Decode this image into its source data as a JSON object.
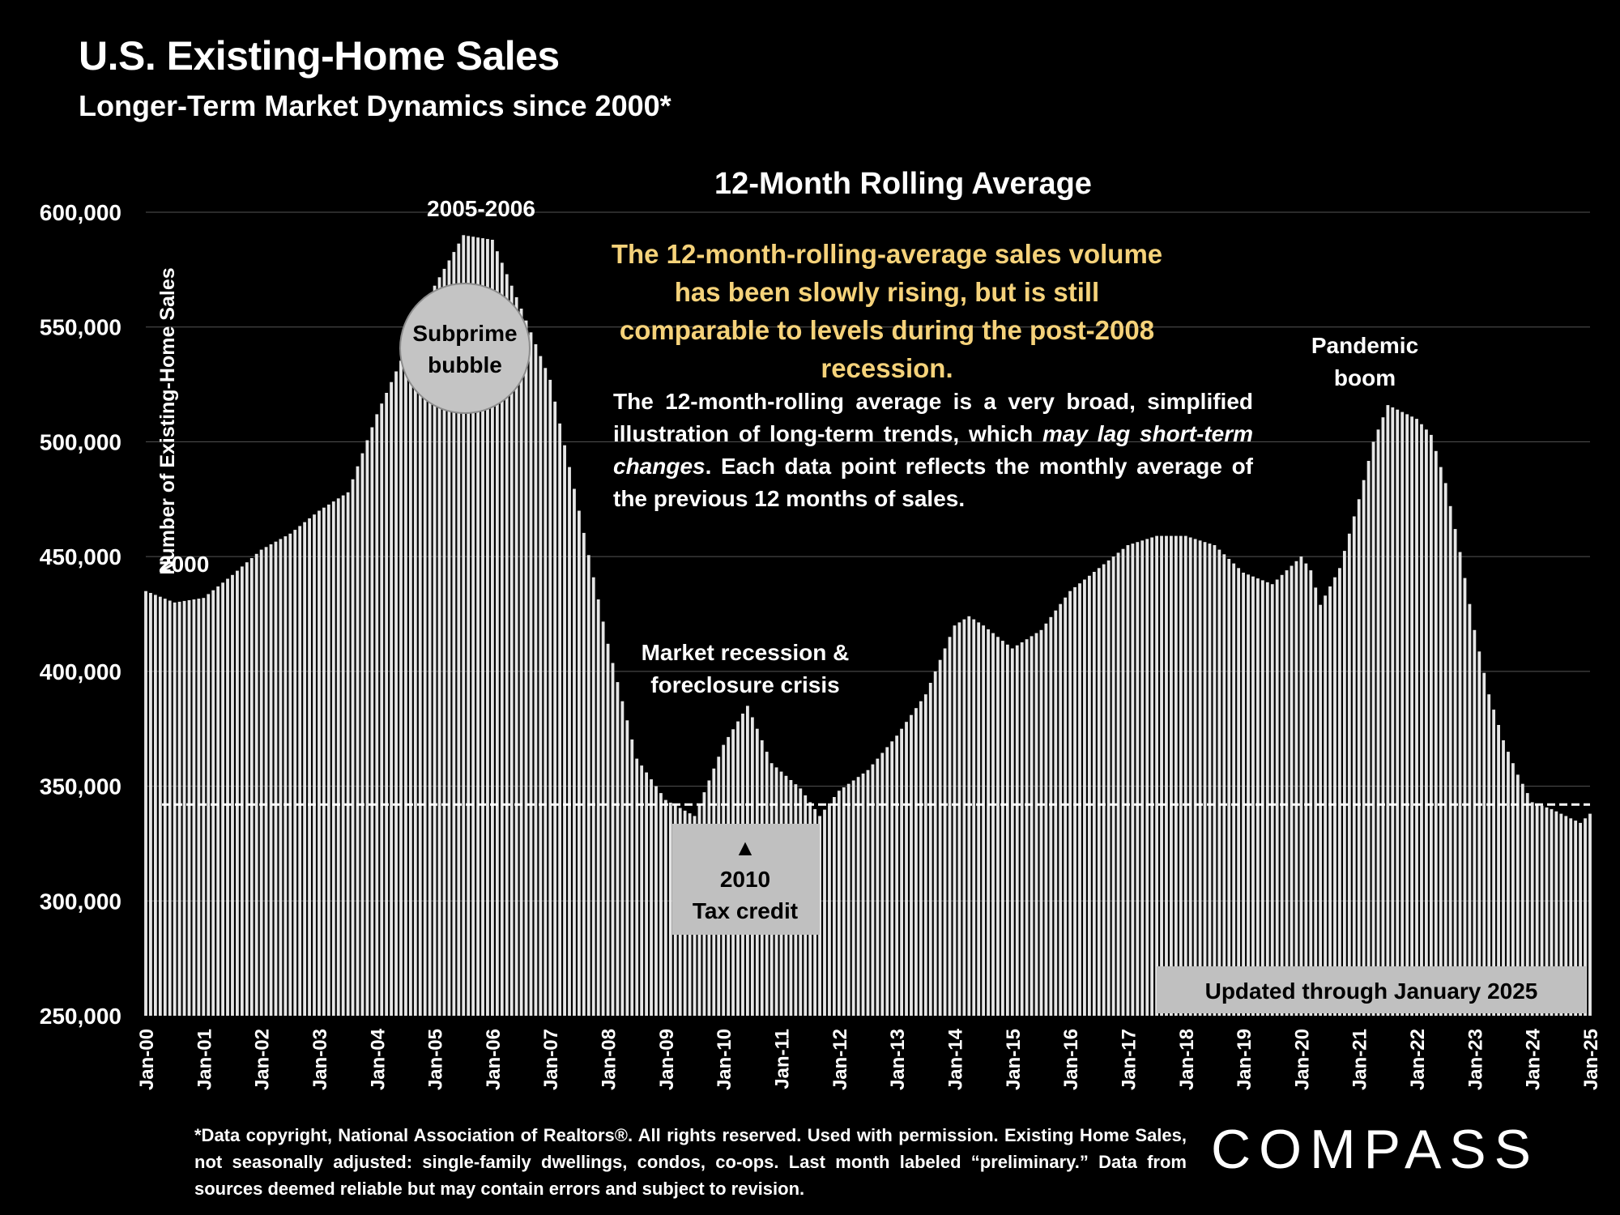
{
  "title": "U.S. Existing-Home Sales",
  "subtitle": "Longer-Term Market Dynamics since 2000*",
  "headline": "The 12-month-rolling-average sales volume has been slowly rising, but is still comparable to levels during the post-2008 recession.",
  "explanation": {
    "part1": "The 12-month-rolling average is a very broad, simplified illustration of long-term trends, which ",
    "italic": "may lag short-term changes",
    "part2": ". Each data point reflects the monthly average of the previous 12 months of sales."
  },
  "footnote": "*Data copyright, National Association of Realtors®. All rights reserved. Used with permission. Existing Home Sales, not seasonally adjusted:  single-family dwellings, condos, co-ops. Last month labeled “preliminary.” Data from sources deemed reliable but may contain errors and subject to revision.",
  "logo": "COMPASS",
  "colors": {
    "background": "#000000",
    "bar": "#e6e6e6",
    "headline": "#f5d27a",
    "callout": "#c0c0c0"
  },
  "chart_data": {
    "type": "bar",
    "title": "12-Month Rolling Average",
    "ylabel": "Number of Existing-Home Sales",
    "xlabel": "",
    "ylim": [
      250000,
      600000
    ],
    "yticks": [
      250000,
      300000,
      350000,
      400000,
      450000,
      500000,
      550000,
      600000
    ],
    "ytick_labels": [
      "250,000",
      "300,000",
      "350,000",
      "400,000",
      "450,000",
      "500,000",
      "550,000",
      "600,000"
    ],
    "xtick_labels": [
      "Jan-00",
      "Jan-01",
      "Jan-02",
      "Jan-03",
      "Jan-04",
      "Jan-05",
      "Jan-06",
      "Jan-07",
      "Jan-08",
      "Jan-09",
      "Jan-10",
      "Jan-11",
      "Jan-12",
      "Jan-13",
      "Jan-14",
      "Jan-15",
      "Jan-16",
      "Jan-17",
      "Jan-18",
      "Jan-19",
      "Jan-20",
      "Jan-21",
      "Jan-22",
      "Jan-23",
      "Jan-24",
      "Jan-25"
    ],
    "start_month": "Jan-00",
    "end_month": "Jan-25",
    "monthly_anchors": [
      [
        0,
        435000
      ],
      [
        6,
        430000
      ],
      [
        12,
        432000
      ],
      [
        18,
        442000
      ],
      [
        24,
        453000
      ],
      [
        30,
        460000
      ],
      [
        36,
        470000
      ],
      [
        42,
        478000
      ],
      [
        48,
        512000
      ],
      [
        54,
        540000
      ],
      [
        60,
        568000
      ],
      [
        66,
        590000
      ],
      [
        72,
        588000
      ],
      [
        78,
        558000
      ],
      [
        84,
        527000
      ],
      [
        90,
        470000
      ],
      [
        96,
        412000
      ],
      [
        102,
        362000
      ],
      [
        108,
        344000
      ],
      [
        114,
        337000
      ],
      [
        120,
        368000
      ],
      [
        125,
        385000
      ],
      [
        130,
        360000
      ],
      [
        136,
        349000
      ],
      [
        140,
        337000
      ],
      [
        144,
        348000
      ],
      [
        150,
        357000
      ],
      [
        156,
        372000
      ],
      [
        162,
        390000
      ],
      [
        168,
        420000
      ],
      [
        171,
        424000
      ],
      [
        174,
        420000
      ],
      [
        180,
        410000
      ],
      [
        186,
        418000
      ],
      [
        192,
        435000
      ],
      [
        198,
        445000
      ],
      [
        204,
        455000
      ],
      [
        210,
        459000
      ],
      [
        216,
        459000
      ],
      [
        222,
        455000
      ],
      [
        228,
        443000
      ],
      [
        234,
        438000
      ],
      [
        240,
        450000
      ],
      [
        242,
        444000
      ],
      [
        244,
        429000
      ],
      [
        248,
        445000
      ],
      [
        252,
        475000
      ],
      [
        255,
        500000
      ],
      [
        258,
        516000
      ],
      [
        264,
        510000
      ],
      [
        267,
        503000
      ],
      [
        270,
        482000
      ],
      [
        273,
        452000
      ],
      [
        276,
        418000
      ],
      [
        279,
        390000
      ],
      [
        282,
        370000
      ],
      [
        285,
        355000
      ],
      [
        288,
        343000
      ],
      [
        292,
        340000
      ],
      [
        296,
        336000
      ],
      [
        298,
        334000
      ],
      [
        300,
        338000
      ]
    ],
    "reference_line": {
      "value": 342000,
      "style": "dashed"
    },
    "annotations": {
      "start_label": "2000",
      "peak_label": "2005-2006",
      "bubble_line1": "Subprime",
      "bubble_line2": "bubble",
      "recession_line1": "Market recession &",
      "recession_line2": "foreclosure crisis",
      "tax_credit_arrow": "▲",
      "tax_credit_line1": "2010",
      "tax_credit_line2": "Tax credit",
      "pandemic_line1": "Pandemic",
      "pandemic_line2": "boom",
      "updated": "Updated through January 2025"
    }
  }
}
